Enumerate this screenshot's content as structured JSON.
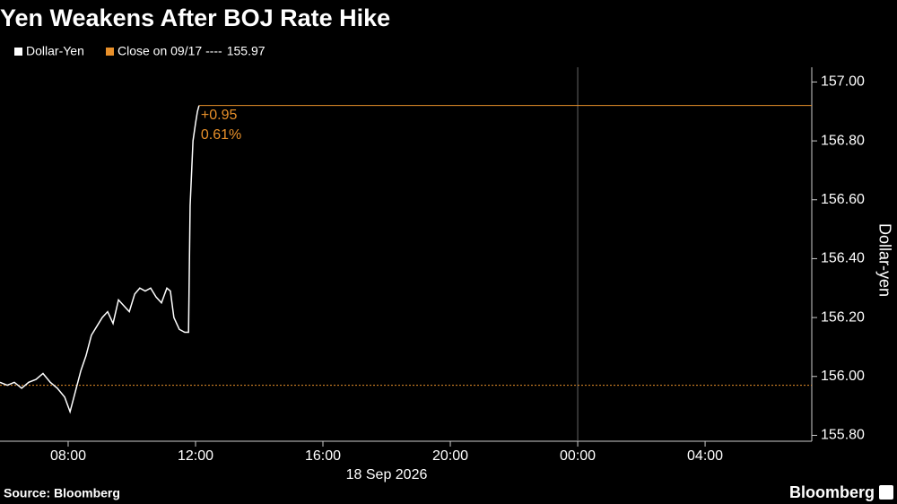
{
  "chart_data": {
    "type": "line",
    "title": "Yen Weakens After BOJ Rate Hike",
    "y_label": "Dollar-yen",
    "x_date_label": "18 Sep 2026",
    "source": "Source: Bloomberg",
    "brand": "Bloomberg",
    "series": [
      {
        "name": "Dollar-Yen",
        "color": "#ffffff",
        "x": [
          5.86,
          6.09,
          6.31,
          6.54,
          6.76,
          6.99,
          7.21,
          7.44,
          7.66,
          7.89,
          8.06,
          8.23,
          8.4,
          8.56,
          8.73,
          8.9,
          9.07,
          9.24,
          9.41,
          9.58,
          9.75,
          9.92,
          10.09,
          10.25,
          10.42,
          10.59,
          10.76,
          10.93,
          11.1,
          11.21,
          11.32,
          11.49,
          11.66,
          11.78,
          11.83,
          11.92,
          12.0,
          12.06,
          12.11
        ],
        "values": [
          155.98,
          155.97,
          155.98,
          155.96,
          155.98,
          155.99,
          156.01,
          155.98,
          155.96,
          155.93,
          155.88,
          155.95,
          156.02,
          156.07,
          156.14,
          156.17,
          156.2,
          156.22,
          156.18,
          156.26,
          156.24,
          156.22,
          156.28,
          156.3,
          156.29,
          156.3,
          156.27,
          156.25,
          156.3,
          156.29,
          156.2,
          156.16,
          156.15,
          156.15,
          156.58,
          156.8,
          156.86,
          156.9,
          156.92
        ]
      }
    ],
    "reference_line": {
      "label": "Close on 09/17 ----",
      "value": 155.97,
      "color": "#e8902a"
    },
    "annotations": [
      "+0.95",
      "0.61%"
    ],
    "xlim": [
      5.86,
      31.35
    ],
    "xticks": [
      {
        "value": 8,
        "label": "08:00"
      },
      {
        "value": 12,
        "label": "12:00"
      },
      {
        "value": 16,
        "label": "16:00"
      },
      {
        "value": 20,
        "label": "20:00"
      },
      {
        "value": 24,
        "label": "00:00"
      },
      {
        "value": 28,
        "label": "04:00"
      }
    ],
    "ylim": [
      155.78,
      157.05
    ],
    "yticks": [
      {
        "value": 155.8,
        "label": "155.80"
      },
      {
        "value": 156.0,
        "label": "156.00"
      },
      {
        "value": 156.2,
        "label": "156.20"
      },
      {
        "value": 156.4,
        "label": "156.40"
      },
      {
        "value": 156.6,
        "label": "156.60"
      },
      {
        "value": 156.8,
        "label": "156.80"
      },
      {
        "value": 157.0,
        "label": "157.00"
      }
    ]
  }
}
